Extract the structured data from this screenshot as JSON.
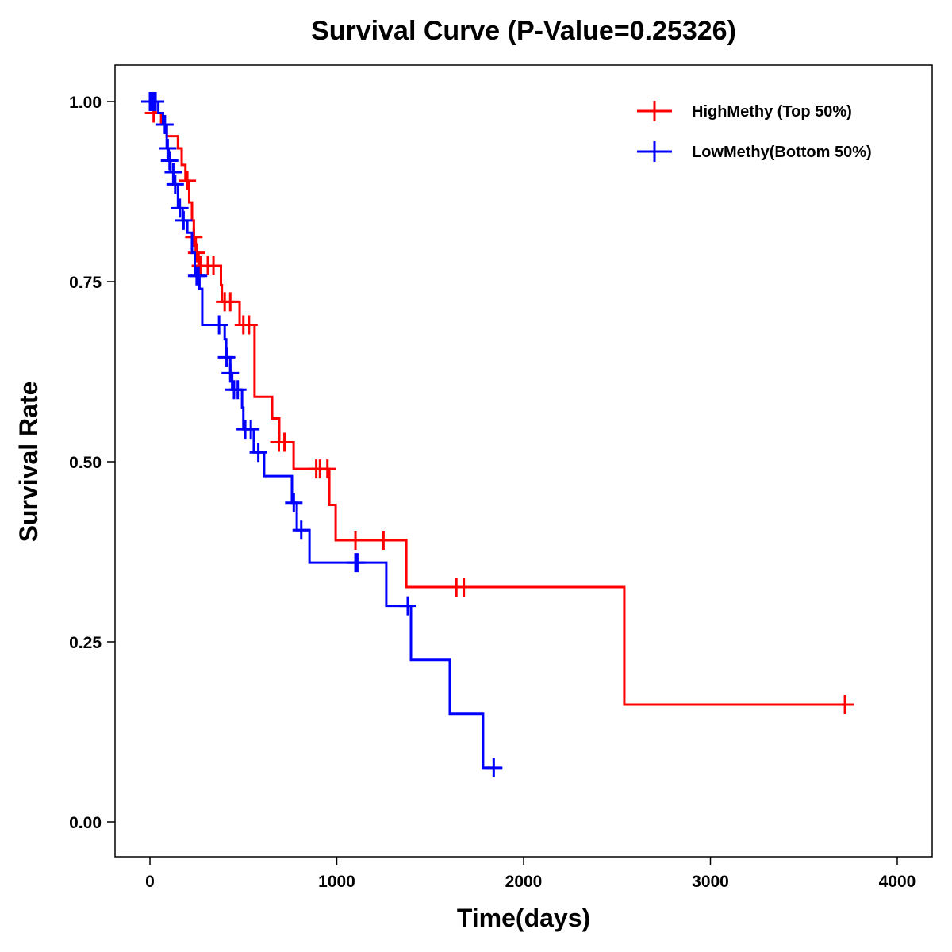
{
  "chart_data": {
    "type": "line",
    "subtype": "kaplan-meier step",
    "title": "Survival Curve (P-Value=0.25326)",
    "xlabel": "Time(days)",
    "ylabel": "Survival Rate",
    "xlim": [
      -200,
      4150
    ],
    "ylim": [
      -0.05,
      1.05
    ],
    "xticks": [
      0,
      1000,
      2000,
      3000,
      4000
    ],
    "xtick_labels": [
      "0",
      "1000",
      "2000",
      "3000",
      "4000"
    ],
    "yticks": [
      0,
      0.25,
      0.5,
      0.75,
      1.0
    ],
    "ytick_labels": [
      "0.00",
      "0.25",
      "0.50",
      "0.75",
      "1.00"
    ],
    "grid": false,
    "legend_position": "top-right",
    "series": [
      {
        "name": "HighMethy (Top 50%)",
        "color": "#ff0000",
        "steps": [
          [
            0,
            1.0
          ],
          [
            30,
            0.984
          ],
          [
            60,
            0.968
          ],
          [
            90,
            0.952
          ],
          [
            150,
            0.935
          ],
          [
            170,
            0.912
          ],
          [
            190,
            0.89
          ],
          [
            210,
            0.86
          ],
          [
            225,
            0.835
          ],
          [
            235,
            0.812
          ],
          [
            245,
            0.79
          ],
          [
            260,
            0.772
          ],
          [
            380,
            0.745
          ],
          [
            385,
            0.722
          ],
          [
            480,
            0.69
          ],
          [
            560,
            0.59
          ],
          [
            654,
            0.56
          ],
          [
            692,
            0.527
          ],
          [
            769,
            0.49
          ],
          [
            960,
            0.44
          ],
          [
            994,
            0.391
          ],
          [
            1372,
            0.326
          ],
          [
            2539,
            0.163
          ]
        ],
        "end": 3720,
        "censored": [
          [
            20,
            0.984
          ],
          [
            200,
            0.89
          ],
          [
            235,
            0.812
          ],
          [
            250,
            0.79
          ],
          [
            270,
            0.772
          ],
          [
            310,
            0.772
          ],
          [
            340,
            0.772
          ],
          [
            400,
            0.722
          ],
          [
            430,
            0.722
          ],
          [
            500,
            0.69
          ],
          [
            530,
            0.69
          ],
          [
            690,
            0.527
          ],
          [
            720,
            0.527
          ],
          [
            890,
            0.49
          ],
          [
            910,
            0.49
          ],
          [
            950,
            0.49
          ],
          [
            1100,
            0.391
          ],
          [
            1250,
            0.391
          ],
          [
            1640,
            0.326
          ],
          [
            1680,
            0.326
          ],
          [
            3720,
            0.163
          ]
        ]
      },
      {
        "name": "LowMethy(Bottom 50%)",
        "color": "#0000ff",
        "steps": [
          [
            0,
            1.0
          ],
          [
            45,
            0.984
          ],
          [
            70,
            0.968
          ],
          [
            90,
            0.935
          ],
          [
            100,
            0.918
          ],
          [
            110,
            0.902
          ],
          [
            125,
            0.885
          ],
          [
            150,
            0.852
          ],
          [
            175,
            0.835
          ],
          [
            200,
            0.818
          ],
          [
            225,
            0.79
          ],
          [
            240,
            0.758
          ],
          [
            265,
            0.74
          ],
          [
            280,
            0.69
          ],
          [
            400,
            0.67
          ],
          [
            408,
            0.645
          ],
          [
            430,
            0.623
          ],
          [
            440,
            0.6
          ],
          [
            493,
            0.575
          ],
          [
            500,
            0.545
          ],
          [
            556,
            0.513
          ],
          [
            611,
            0.48
          ],
          [
            760,
            0.443
          ],
          [
            786,
            0.405
          ],
          [
            854,
            0.36
          ],
          [
            1265,
            0.3
          ],
          [
            1397,
            0.225
          ],
          [
            1605,
            0.15
          ],
          [
            1783,
            0.075
          ]
        ],
        "end": 1840,
        "censored": [
          [
            0,
            1.0
          ],
          [
            10,
            1.0
          ],
          [
            20,
            1.0
          ],
          [
            30,
            1.0
          ],
          [
            80,
            0.968
          ],
          [
            95,
            0.935
          ],
          [
            105,
            0.918
          ],
          [
            125,
            0.902
          ],
          [
            135,
            0.885
          ],
          [
            160,
            0.852
          ],
          [
            180,
            0.835
          ],
          [
            250,
            0.758
          ],
          [
            260,
            0.758
          ],
          [
            370,
            0.69
          ],
          [
            410,
            0.645
          ],
          [
            430,
            0.623
          ],
          [
            450,
            0.6
          ],
          [
            470,
            0.6
          ],
          [
            510,
            0.545
          ],
          [
            540,
            0.545
          ],
          [
            580,
            0.513
          ],
          [
            770,
            0.443
          ],
          [
            810,
            0.405
          ],
          [
            1100,
            0.36
          ],
          [
            1110,
            0.36
          ],
          [
            1380,
            0.3
          ],
          [
            1840,
            0.075
          ]
        ]
      }
    ]
  }
}
